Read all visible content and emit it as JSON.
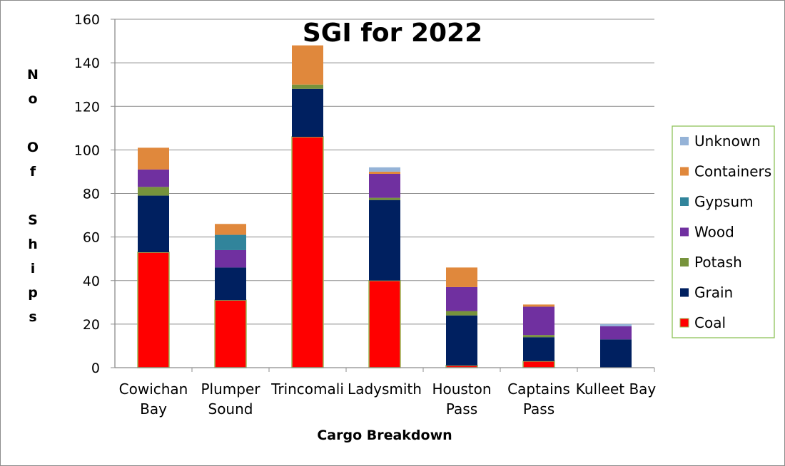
{
  "chart_data": {
    "type": "bar",
    "stacked": true,
    "title": "SGI for 2022",
    "xlabel": "Cargo Breakdown",
    "ylabel": "No Of Ships",
    "ylim": [
      0,
      160
    ],
    "yticks": [
      0,
      20,
      40,
      60,
      80,
      100,
      120,
      140,
      160
    ],
    "grid": true,
    "legend_position": "right",
    "categories": [
      [
        "Cowichan",
        "Bay"
      ],
      [
        "Plumper",
        "Sound"
      ],
      [
        "Trincomali"
      ],
      [
        "Ladysmith"
      ],
      [
        "Houston",
        "Pass"
      ],
      [
        "Captains",
        "Pass"
      ],
      [
        "Kulleet Bay"
      ]
    ],
    "series": [
      {
        "name": "Coal",
        "color": "#ff0000",
        "values": [
          53,
          31,
          106,
          40,
          1,
          3,
          0
        ]
      },
      {
        "name": "Grain",
        "color": "#002060",
        "values": [
          26,
          15,
          22,
          37,
          23,
          11,
          13
        ]
      },
      {
        "name": "Potash",
        "color": "#77933c",
        "values": [
          4,
          0,
          2,
          1,
          2,
          1,
          0
        ]
      },
      {
        "name": "Wood",
        "color": "#7030a0",
        "values": [
          8,
          8,
          0,
          11,
          11,
          13,
          6
        ]
      },
      {
        "name": "Gypsum",
        "color": "#31849b",
        "values": [
          0,
          7,
          0,
          0,
          0,
          0,
          0
        ]
      },
      {
        "name": "Containers",
        "color": "#e0883c",
        "values": [
          10,
          5,
          18,
          1,
          9,
          1,
          0
        ]
      },
      {
        "name": "Unknown",
        "color": "#95b3d7",
        "values": [
          0,
          0,
          0,
          2,
          0,
          0,
          1
        ]
      }
    ]
  }
}
